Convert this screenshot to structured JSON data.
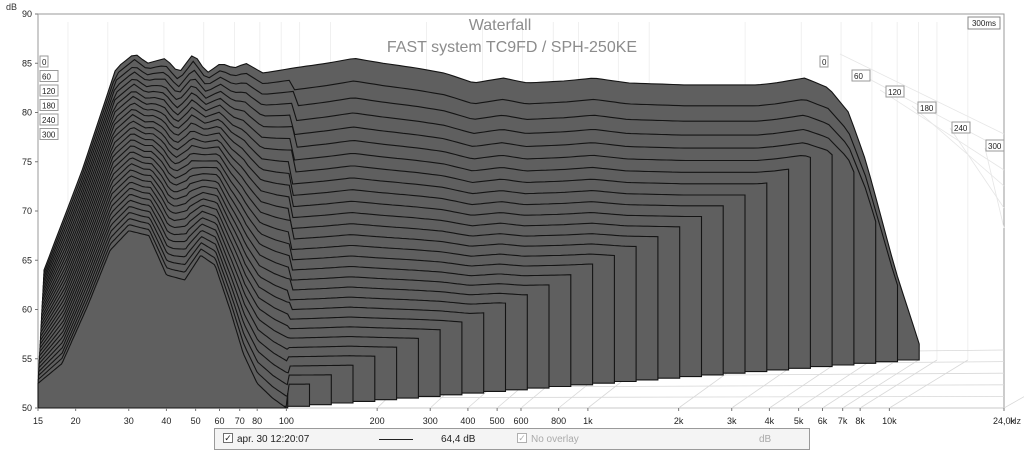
{
  "chart_data": {
    "type": "waterfall",
    "title": "Waterfall",
    "subtitle": "FAST system TC9FD / SPH-250KE",
    "ylabel": "dB",
    "xunit": "Hz",
    "ylim": [
      50,
      90
    ],
    "y_ticks": [
      "50",
      "55",
      "60",
      "65",
      "70",
      "75",
      "80",
      "85",
      "90"
    ],
    "xlim": [
      15,
      24000
    ],
    "x_scale": "log",
    "x_ticks": [
      {
        "v": 15,
        "label": "15"
      },
      {
        "v": 20,
        "label": "20"
      },
      {
        "v": 30,
        "label": "30"
      },
      {
        "v": 40,
        "label": "40"
      },
      {
        "v": 50,
        "label": "50"
      },
      {
        "v": 60,
        "label": "60"
      },
      {
        "v": 70,
        "label": "70"
      },
      {
        "v": 80,
        "label": "80"
      },
      {
        "v": 100,
        "label": "100"
      },
      {
        "v": 200,
        "label": "200"
      },
      {
        "v": 300,
        "label": "300"
      },
      {
        "v": 400,
        "label": "400"
      },
      {
        "v": 500,
        "label": "500"
      },
      {
        "v": 600,
        "label": "600"
      },
      {
        "v": 800,
        "label": "800"
      },
      {
        "v": 1000,
        "label": "1k"
      },
      {
        "v": 2000,
        "label": "2k"
      },
      {
        "v": 3000,
        "label": "3k"
      },
      {
        "v": 4000,
        "label": "4k"
      },
      {
        "v": 5000,
        "label": "5k"
      },
      {
        "v": 6000,
        "label": "6k"
      },
      {
        "v": 7000,
        "label": "7k"
      },
      {
        "v": 8000,
        "label": "8k"
      },
      {
        "v": 10000,
        "label": "10k"
      },
      {
        "v": 24000,
        "label": "24,0k"
      }
    ],
    "time_unit": "ms",
    "time_max_label": "300ms",
    "time_ticks_left": [
      "0",
      "60",
      "120",
      "180",
      "240",
      "300"
    ],
    "time_ticks_right": [
      "0",
      "60",
      "120",
      "180",
      "240",
      "300"
    ],
    "slice_count": 30,
    "slice_peak_db": [
      86.0,
      56.5
    ],
    "front_slice": {
      "freq": [
        15,
        18,
        22,
        26,
        30,
        35,
        40,
        46,
        52,
        58,
        65,
        72,
        80,
        90,
        100,
        101
      ],
      "db": [
        52.5,
        54.5,
        60.5,
        66.0,
        68.0,
        67.5,
        63.5,
        63.0,
        65.5,
        64.5,
        60.0,
        55.5,
        52.5,
        51.0,
        50.0,
        50.0
      ]
    },
    "back_slice": {
      "freq": [
        15,
        20,
        26,
        30,
        33,
        38,
        42,
        47,
        52,
        58,
        64,
        70,
        80,
        100,
        130,
        160,
        200,
        260,
        320,
        400,
        500,
        600,
        800,
        1000,
        1300,
        2000,
        3000,
        3500,
        4000,
        5000,
        6000,
        7000,
        8000,
        10000,
        12000
      ],
      "db": [
        64.0,
        74.0,
        84.5,
        86.0,
        85.0,
        85.5,
        84.0,
        86.0,
        84.0,
        85.0,
        84.5,
        85.0,
        84.0,
        84.5,
        85.0,
        85.5,
        85.0,
        84.5,
        84.0,
        83.0,
        83.5,
        83.0,
        83.2,
        83.5,
        83.0,
        82.8,
        82.8,
        82.8,
        83.0,
        83.5,
        82.5,
        80.0,
        75.0,
        64.0,
        56.5
      ]
    },
    "legend": {
      "date": "apr. 30 12:20:07",
      "value": "64,4 dB",
      "overlay": "No overlay",
      "overlay_unit": "dB"
    },
    "colors": {
      "fill": "#5f5f5f",
      "line": "#141414",
      "grid": "#d8d8d8",
      "frame": "#9a9a9a"
    }
  }
}
